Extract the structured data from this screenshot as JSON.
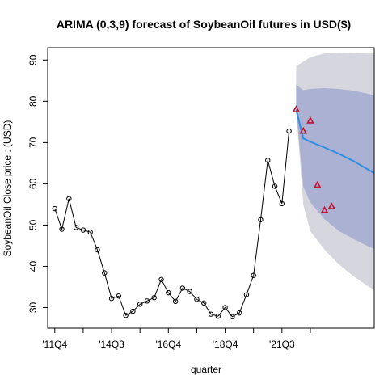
{
  "chart_data": {
    "type": "line",
    "title": "ARIMA (0,3,9) forecast of  SoybeanOil futures in USD($)",
    "xlabel": "quarter",
    "ylabel": "SoybeanOil Close price : (USD)",
    "ylim": [
      25,
      93
    ],
    "yticks": [
      30,
      40,
      50,
      60,
      70,
      80,
      90
    ],
    "x_tick_labels": [
      "'11Q4",
      "'14Q3",
      "'16Q4",
      "'18Q4",
      "'21Q3"
    ],
    "x_tick_label_positions": [
      1,
      5,
      9,
      13,
      17
    ],
    "x_minor_ticks": [
      1,
      3,
      5,
      7,
      9,
      11,
      13,
      15,
      17,
      19
    ],
    "xlim": [
      0.5,
      23.5
    ],
    "grid": false,
    "colors": {
      "observed": "#000000",
      "forecast_line": "#2e8fe0",
      "band_95": "#d6d6de",
      "band_80": "#aab1d2",
      "actual_markers": "#c8102e"
    },
    "series": [
      {
        "role": "observed",
        "x": [
          1,
          1.5,
          2,
          2.5,
          3,
          3.5,
          4,
          4.5,
          5,
          5.5,
          6,
          6.5,
          7,
          7.5,
          8,
          8.5,
          9,
          9.5,
          10,
          10.5,
          11,
          11.5,
          12,
          12.5,
          13,
          13.5,
          14,
          14.5,
          15,
          15.5,
          16,
          16.5,
          17
        ],
        "values": [
          54,
          49,
          56.4,
          49.4,
          48.8,
          48.3,
          44,
          38.4,
          32.2,
          32.8,
          28.1,
          29.1,
          30.8,
          31.6,
          32.4,
          36.8,
          33.6,
          31.5,
          34.7,
          33.9,
          32,
          31.1,
          28.4,
          27.9,
          30,
          27.8,
          28.7,
          33.1,
          37.8,
          51.3,
          65.7,
          59.4,
          55.2
        ]
      },
      {
        "role": "observed_last",
        "x": [
          17.5
        ],
        "values": [
          72.8
        ]
      },
      {
        "role": "forecast",
        "x": [
          18,
          18.5,
          19,
          20,
          21,
          22,
          23,
          23.5
        ],
        "values": [
          78,
          71,
          70.2,
          68.8,
          67.3,
          65.6,
          63.6,
          62.6
        ]
      },
      {
        "role": "band_80",
        "x": [
          18,
          18.5,
          19,
          20,
          21,
          22,
          23,
          23.5
        ],
        "upper": [
          84,
          82.7,
          83,
          83.2,
          83,
          82.6,
          81.9,
          81.4
        ],
        "lower": [
          78,
          59.3,
          55.5,
          51.4,
          48.6,
          46.7,
          45,
          44.2
        ]
      },
      {
        "role": "band_95",
        "x": [
          18,
          18.5,
          19,
          20,
          21,
          22,
          23,
          23.5
        ],
        "upper": [
          88.5,
          89.6,
          90.7,
          91.6,
          91.8,
          91.7,
          91.6,
          91.6
        ],
        "lower": [
          78,
          55,
          48.5,
          44,
          40.5,
          37.7,
          35.3,
          34.2
        ]
      },
      {
        "role": "actual",
        "x": [
          18,
          18.5,
          19,
          19.5,
          20,
          20.5
        ],
        "values": [
          78,
          72.8,
          75.3,
          59.7,
          53.6,
          54.5
        ]
      }
    ]
  }
}
